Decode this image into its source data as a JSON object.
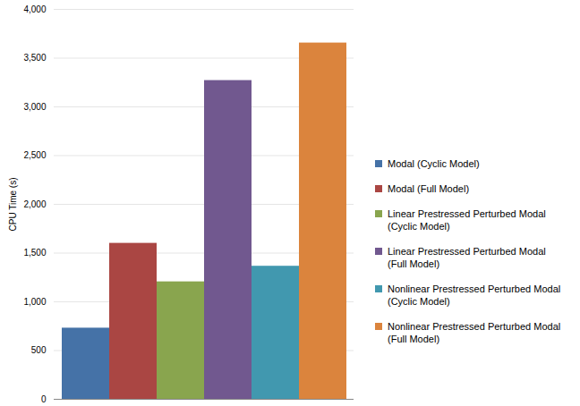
{
  "chart_data": {
    "type": "bar",
    "y_label": "CPU Time (s)",
    "categories": [
      null
    ],
    "series": [
      {
        "name": "Modal (Cyclic Model)",
        "color": "#4572a7",
        "values": [
          730
        ]
      },
      {
        "name": "Modal (Full Model)",
        "color": "#aa4643",
        "values": [
          1600
        ]
      },
      {
        "name": "Linear Prestressed Perturbed Modal (Cyclic Model)",
        "color": "#89a54e",
        "values": [
          1205
        ]
      },
      {
        "name": "Linear Prestressed Perturbed Modal (Full Model)",
        "color": "#71588f",
        "values": [
          3270
        ]
      },
      {
        "name": "Nonlinear Prestressed Perturbed Modal (Cyclic Model)",
        "color": "#4198af",
        "values": [
          1365
        ]
      },
      {
        "name": "Nonlinear Prestressed Perturbed Modal (Full Model)",
        "color": "#db843d",
        "values": [
          3655
        ]
      }
    ],
    "ylim": [
      0,
      4000
    ],
    "yticks": [
      0,
      500,
      1000,
      1500,
      2000,
      2500,
      3000,
      3500,
      4000
    ],
    "grid": true,
    "legend": "right",
    "tick_labels": "y"
  }
}
